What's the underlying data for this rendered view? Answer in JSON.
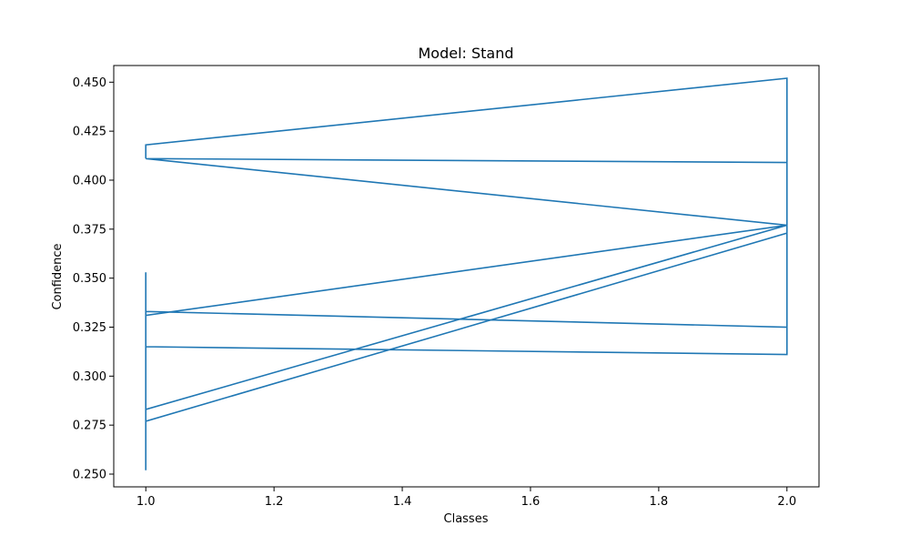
{
  "chart_data": {
    "type": "line",
    "title": "Model: Stand",
    "xlabel": "Classes",
    "ylabel": "Confidence",
    "xlim": [
      0.95,
      2.05
    ],
    "ylim": [
      0.2435,
      0.4585
    ],
    "xticks": [
      1.0,
      1.2,
      1.4,
      1.6,
      1.8,
      2.0
    ],
    "xtick_labels": [
      "1.0",
      "1.2",
      "1.4",
      "1.6",
      "1.8",
      "2.0"
    ],
    "yticks": [
      0.25,
      0.275,
      0.3,
      0.325,
      0.35,
      0.375,
      0.4,
      0.425,
      0.45
    ],
    "ytick_labels": [
      "0.250",
      "0.275",
      "0.300",
      "0.325",
      "0.350",
      "0.375",
      "0.400",
      "0.425",
      "0.450"
    ],
    "grid": false,
    "series": [
      {
        "color": "#1f77b4",
        "x": [
          1,
          1,
          1,
          1,
          1,
          1,
          1,
          2,
          2,
          1,
          1,
          2,
          2,
          1,
          1,
          2,
          2,
          1,
          2,
          2,
          1,
          2,
          2,
          1,
          1
        ],
        "y": [
          0.353,
          0.265,
          0.252,
          0.315,
          0.333,
          0.331,
          0.277,
          0.373,
          0.377,
          0.283,
          0.331,
          0.377,
          0.409,
          0.411,
          0.411,
          0.377,
          0.325,
          0.333,
          0.325,
          0.311,
          0.315,
          0.311,
          0.452,
          0.418,
          0.411
        ]
      }
    ]
  }
}
